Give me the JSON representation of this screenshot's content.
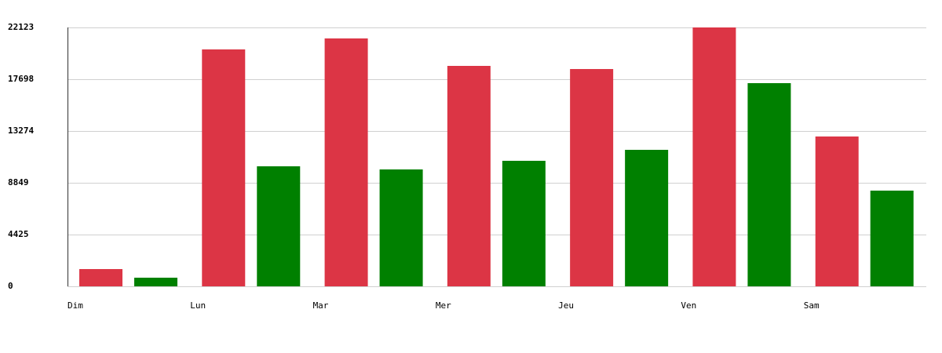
{
  "chart_data": {
    "type": "bar",
    "categories": [
      "Dim",
      "Lun",
      "Mar",
      "Mer",
      "Jeu",
      "Ven",
      "Sam"
    ],
    "series": [
      {
        "color": "#dc3545",
        "values": [
          1475,
          20246,
          21185,
          18838,
          18570,
          22123,
          12804
        ]
      },
      {
        "color": "#008000",
        "values": [
          737,
          10257,
          9989,
          10727,
          11665,
          17364,
          8179
        ]
      }
    ],
    "ylim": [
      0,
      22123
    ],
    "yticks": [
      0,
      4425,
      8849,
      13274,
      17698,
      22123
    ],
    "grid": true
  }
}
